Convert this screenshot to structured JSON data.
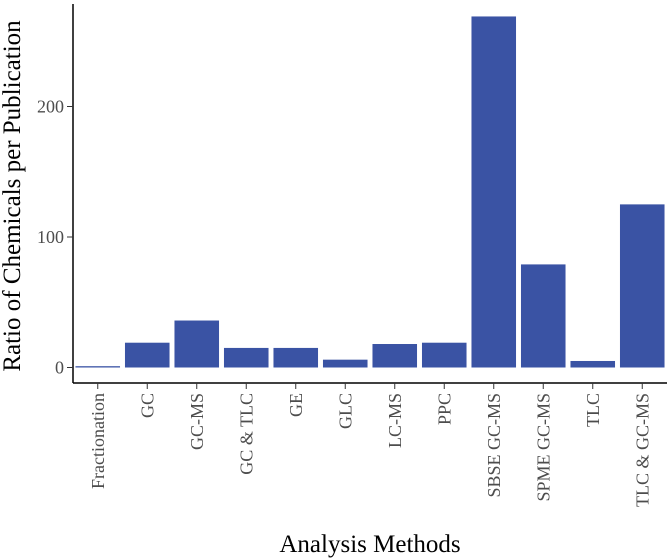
{
  "chart_data": {
    "type": "bar",
    "xlabel": "Analysis Methods",
    "ylabel": "Ratio of Chemicals per Publication",
    "categories": [
      "Fractionation",
      "GC",
      "GC-MS",
      "GC & TLC",
      "GE",
      "GLC",
      "LC-MS",
      "PPC",
      "SBSE GC-MS",
      "SPME GC-MS",
      "TLC",
      "TLC & GC-MS"
    ],
    "values": [
      1,
      19,
      36,
      15,
      15,
      6,
      18,
      19,
      269,
      79,
      5,
      125
    ],
    "ylim": [
      0,
      279
    ],
    "yticks": [
      0,
      100,
      200
    ],
    "grid": false,
    "legend": "none",
    "bar_color": "#3a53a4"
  }
}
